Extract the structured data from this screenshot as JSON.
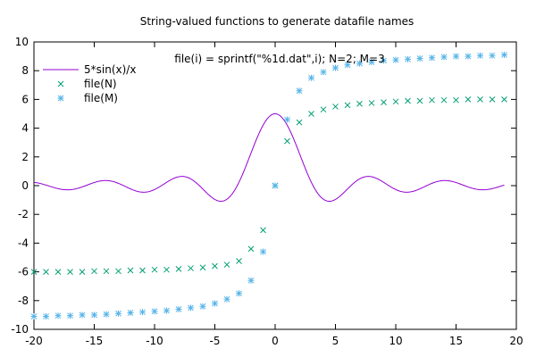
{
  "chart_data": {
    "type": "line",
    "title": "String-valued functions to generate datafile names",
    "annotation": "file(i) = sprintf(\"%1d.dat\",i); N=2; M=3",
    "xlim": [
      -20,
      20
    ],
    "ylim": [
      -10,
      10
    ],
    "x_ticks": [
      -20,
      -15,
      -10,
      -5,
      0,
      5,
      10,
      15,
      20
    ],
    "y_ticks": [
      -10,
      -8,
      -6,
      -4,
      -2,
      0,
      2,
      4,
      6,
      8,
      10
    ],
    "grid": false,
    "legend_position": "top-left",
    "series": [
      {
        "name": "5*sin(x)/x",
        "kind": "line",
        "color": "#9400d3",
        "function": "5*sin(x)/x",
        "x_range": [
          -20,
          19
        ]
      },
      {
        "name": "file(N)",
        "kind": "scatter",
        "marker": "x",
        "color": "#009e73",
        "x": [
          -20,
          -19,
          -18,
          -17,
          -16,
          -15,
          -14,
          -13,
          -12,
          -11,
          -10,
          -9,
          -8,
          -7,
          -6,
          -5,
          -4,
          -3,
          -2,
          -1,
          0,
          1,
          2,
          3,
          4,
          5,
          6,
          7,
          8,
          9,
          10,
          11,
          12,
          13,
          14,
          15,
          16,
          17,
          18,
          19
        ],
        "y": [
          -6.0,
          -6.0,
          -6.0,
          -6.0,
          -6.0,
          -5.95,
          -5.95,
          -5.95,
          -5.9,
          -5.9,
          -5.85,
          -5.85,
          -5.8,
          -5.75,
          -5.7,
          -5.6,
          -5.5,
          -5.25,
          -4.4,
          -3.1,
          0.0,
          3.1,
          4.4,
          5.0,
          5.3,
          5.5,
          5.6,
          5.7,
          5.75,
          5.8,
          5.85,
          5.9,
          5.9,
          5.95,
          5.95,
          5.95,
          6.0,
          6.0,
          6.0,
          6.0
        ]
      },
      {
        "name": "file(M)",
        "kind": "scatter",
        "marker": "star",
        "color": "#56b4e9",
        "x": [
          -20,
          -19,
          -18,
          -17,
          -16,
          -15,
          -14,
          -13,
          -12,
          -11,
          -10,
          -9,
          -8,
          -7,
          -6,
          -5,
          -4,
          -3,
          -2,
          -1,
          0,
          1,
          2,
          3,
          4,
          5,
          6,
          7,
          8,
          9,
          10,
          11,
          12,
          13,
          14,
          15,
          16,
          17,
          18,
          19
        ],
        "y": [
          -9.1,
          -9.1,
          -9.05,
          -9.05,
          -9.0,
          -9.0,
          -8.95,
          -8.9,
          -8.85,
          -8.8,
          -8.75,
          -8.7,
          -8.6,
          -8.5,
          -8.4,
          -8.2,
          -7.9,
          -7.5,
          -6.6,
          -4.6,
          0.0,
          4.6,
          6.6,
          7.5,
          7.9,
          8.2,
          8.4,
          8.5,
          8.6,
          8.7,
          8.75,
          8.8,
          8.85,
          8.9,
          8.95,
          9.0,
          9.0,
          9.05,
          9.05,
          9.1
        ]
      }
    ]
  }
}
